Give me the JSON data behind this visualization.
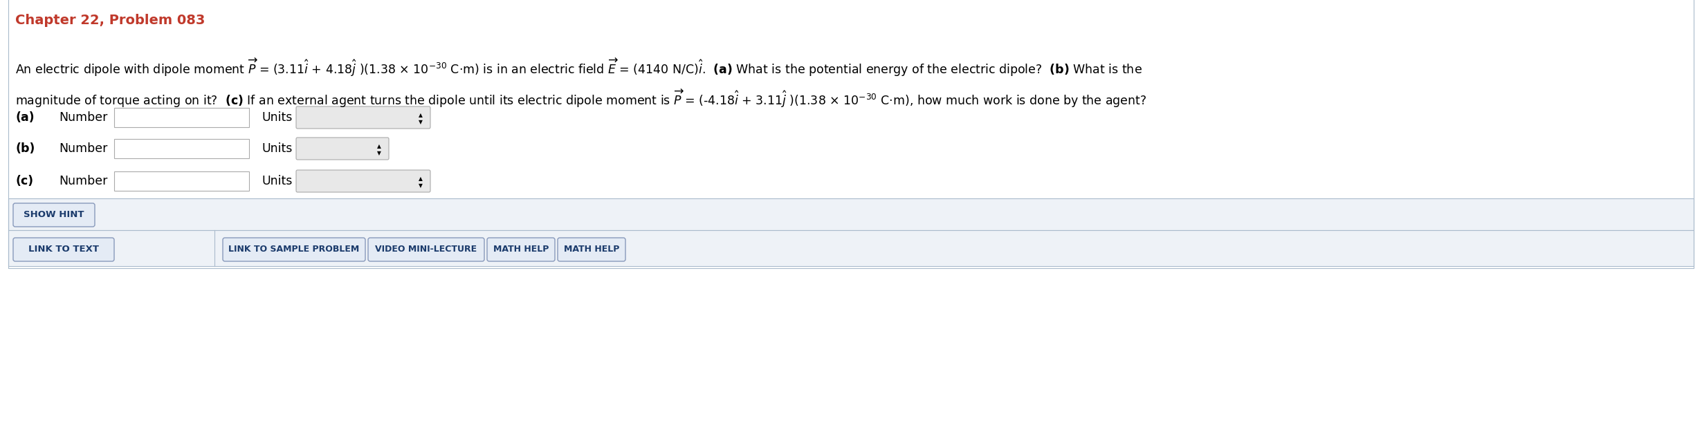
{
  "title": "Chapter 22, Problem 083",
  "title_color": "#C0392B",
  "bg_color": "#FFFFFF",
  "line1_text": "An electric dipole with dipole moment $\\overrightarrow{P}$ = (3.11$\\hat{i}$ + 4.18$\\hat{j}$ )(1.38 × 10$^{-30}$ C·m) is in an electric field $\\overrightarrow{E}$ = (4140 N/C)$\\hat{i}$.  $\\mathbf{(a)}$ What is the potential energy of the electric dipole?  $\\mathbf{(b)}$ What is the",
  "line2_text": "magnitude of torque acting on it?  $\\mathbf{(c)}$ If an external agent turns the dipole until its electric dipole moment is $\\overrightarrow{P}$ = (-4.18$\\hat{i}$ + 3.11$\\hat{j}$ )(1.38 × 10$^{-30}$ C·m), how much work is done by the agent?",
  "row_a_label": "(a)",
  "row_b_label": "(b)",
  "row_c_label": "(c)",
  "number_label": "Number",
  "units_label": "Units",
  "btn_show_hint": "SHOW HINT",
  "btn_link_text": "LINK TO TEXT",
  "btn_sample": "LINK TO SAMPLE PROBLEM",
  "btn_video": "VIDEO MINI-LECTURE",
  "btn_math1": "MATH HELP",
  "btn_math2": "MATH HELP",
  "bg_color_panel": "#EEF2F7",
  "panel_border": "#AABBCC",
  "btn_text_color": "#1A3A6B",
  "btn_bg": "#E4EBF5",
  "btn_border": "#8899BB",
  "input_border": "#AAAAAA",
  "input_bg": "#FFFFFF",
  "dropdown_bg": "#E8E8E8",
  "text_color": "#000000",
  "font_size_title": 14,
  "font_size_body": 12.5,
  "font_size_label": 12.5,
  "font_size_btn": 9.5
}
